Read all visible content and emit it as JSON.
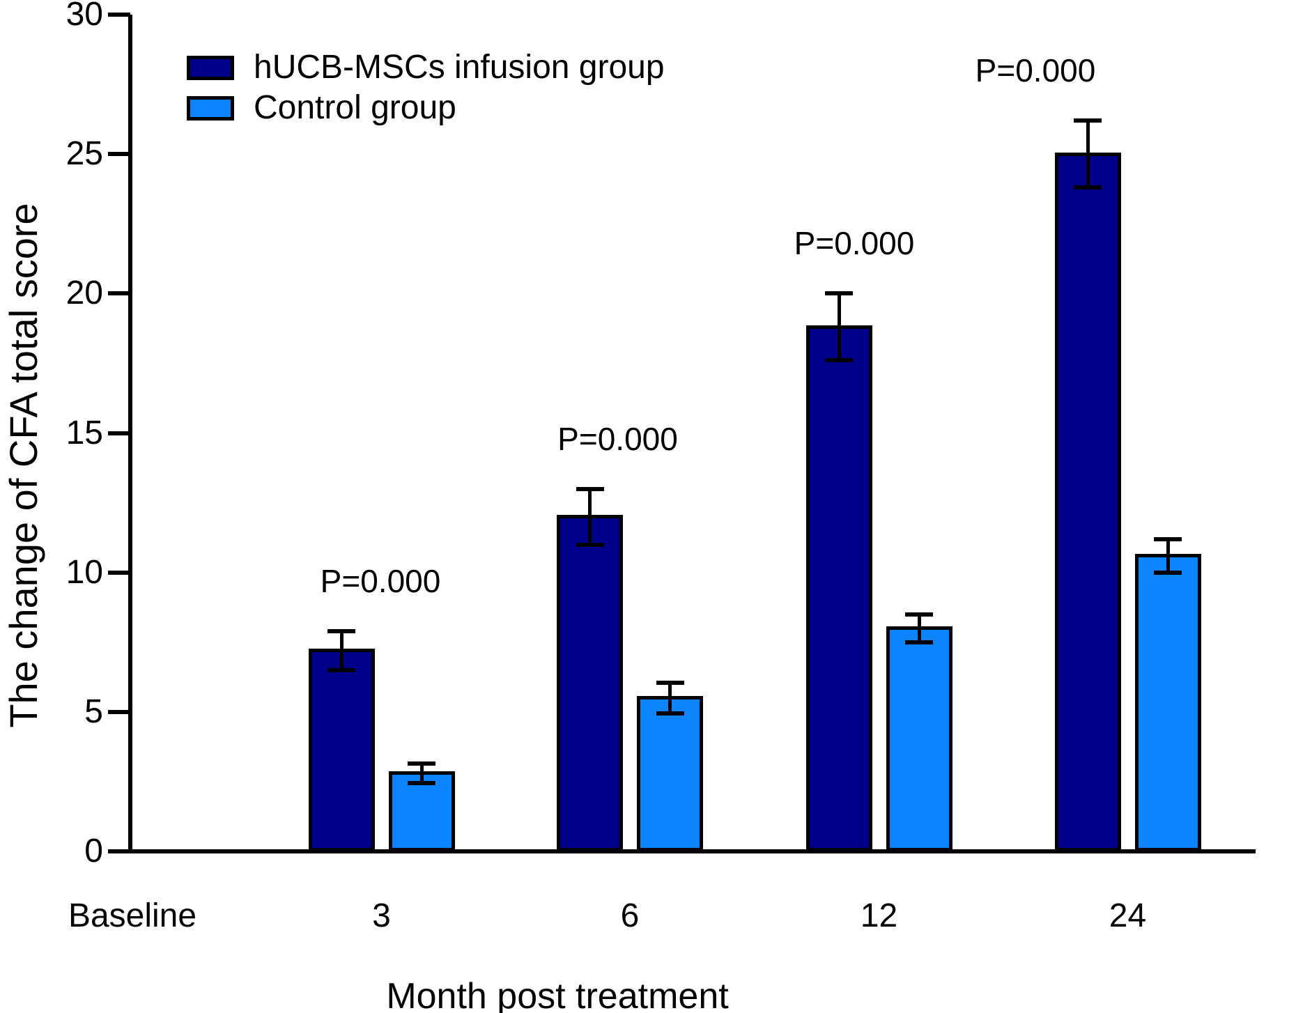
{
  "figure": {
    "background": "#ffffff",
    "axis_color": "#000000"
  },
  "chart_data": {
    "type": "bar",
    "title": "",
    "xlabel": "Month post treatment",
    "ylabel": "The change of CFA total score",
    "categories": [
      "Baseline",
      "3",
      "6",
      "12",
      "24"
    ],
    "y_ticks": [
      0,
      5,
      10,
      15,
      20,
      25,
      30
    ],
    "ylim": [
      0,
      30
    ],
    "grid": false,
    "legend_position": "top-left-inside",
    "error_bars": true,
    "series": [
      {
        "name": "hUCB-MSCs infusion group",
        "color": "#00008B",
        "values": [
          null,
          7.2,
          12.0,
          18.8,
          25.0
        ],
        "errors": [
          null,
          0.7,
          1.0,
          1.2,
          1.2
        ]
      },
      {
        "name": "Control group",
        "color": "#0D84FF",
        "values": [
          null,
          2.8,
          5.5,
          8.0,
          10.6
        ],
        "errors": [
          null,
          0.35,
          0.55,
          0.5,
          0.6
        ]
      }
    ],
    "annotations": [
      {
        "text": "P=0.000",
        "category": "3"
      },
      {
        "text": "P=0.000",
        "category": "6"
      },
      {
        "text": "P=0.000",
        "category": "12"
      },
      {
        "text": "P=0.000",
        "category": "24"
      }
    ]
  }
}
